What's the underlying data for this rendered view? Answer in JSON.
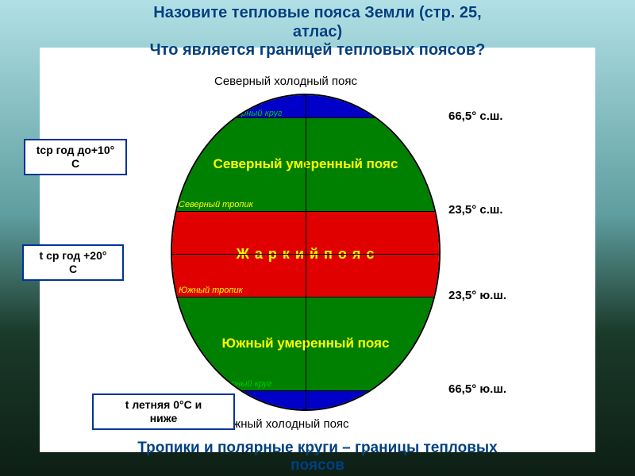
{
  "title_line1": "Назовите тепловые пояса Земли (стр. 25,",
  "title_line2": "атлас)",
  "subtitle": "Что является границей тепловых поясов?",
  "footer_line1": "Тропики и полярные круги – границы тепловых",
  "footer_line2": "поясов",
  "outer_top": "Северный холодный пояс",
  "outer_bottom": "Южный холодный пояс",
  "lat": {
    "n_polar": "66,5° с.ш.",
    "n_tropic": "23,5° с.ш.",
    "s_tropic": "23,5° ю.ш.",
    "s_polar": "66,5° ю.ш."
  },
  "bands": {
    "n_polar_circle": "Северный полярный круг",
    "n_temperate": "Северный умеренный пояс",
    "n_tropic_line": "Северный тропик",
    "hot": "Ж а р к и й    п о я с",
    "s_tropic_line": "Южный тропик",
    "s_temperate": "Южный умеренный пояс",
    "s_polar_circle": "Южный полярный круг"
  },
  "colors": {
    "polar": "#0000c8",
    "temperate": "#008000",
    "hot": "#e00000",
    "polar_text": "#00c800",
    "temperate_text": "#ffff00",
    "hot_text": "#ffff00",
    "tropic_text": "#ffff00"
  },
  "infobox": {
    "b1_l1": "tср год до+10°",
    "b1_l2": "С",
    "b2_l1": "t ср год +20°",
    "b2_l2": "С",
    "b3_l1": "t летняя 0°С и",
    "b3_l2": "ниже"
  },
  "layout": {
    "globe_w": 340,
    "globe_h": 400,
    "polar_top_h": 28,
    "temperate_top_h": 118,
    "hot_h": 108,
    "temperate_bot_h": 118,
    "polar_bot_h": 28
  }
}
